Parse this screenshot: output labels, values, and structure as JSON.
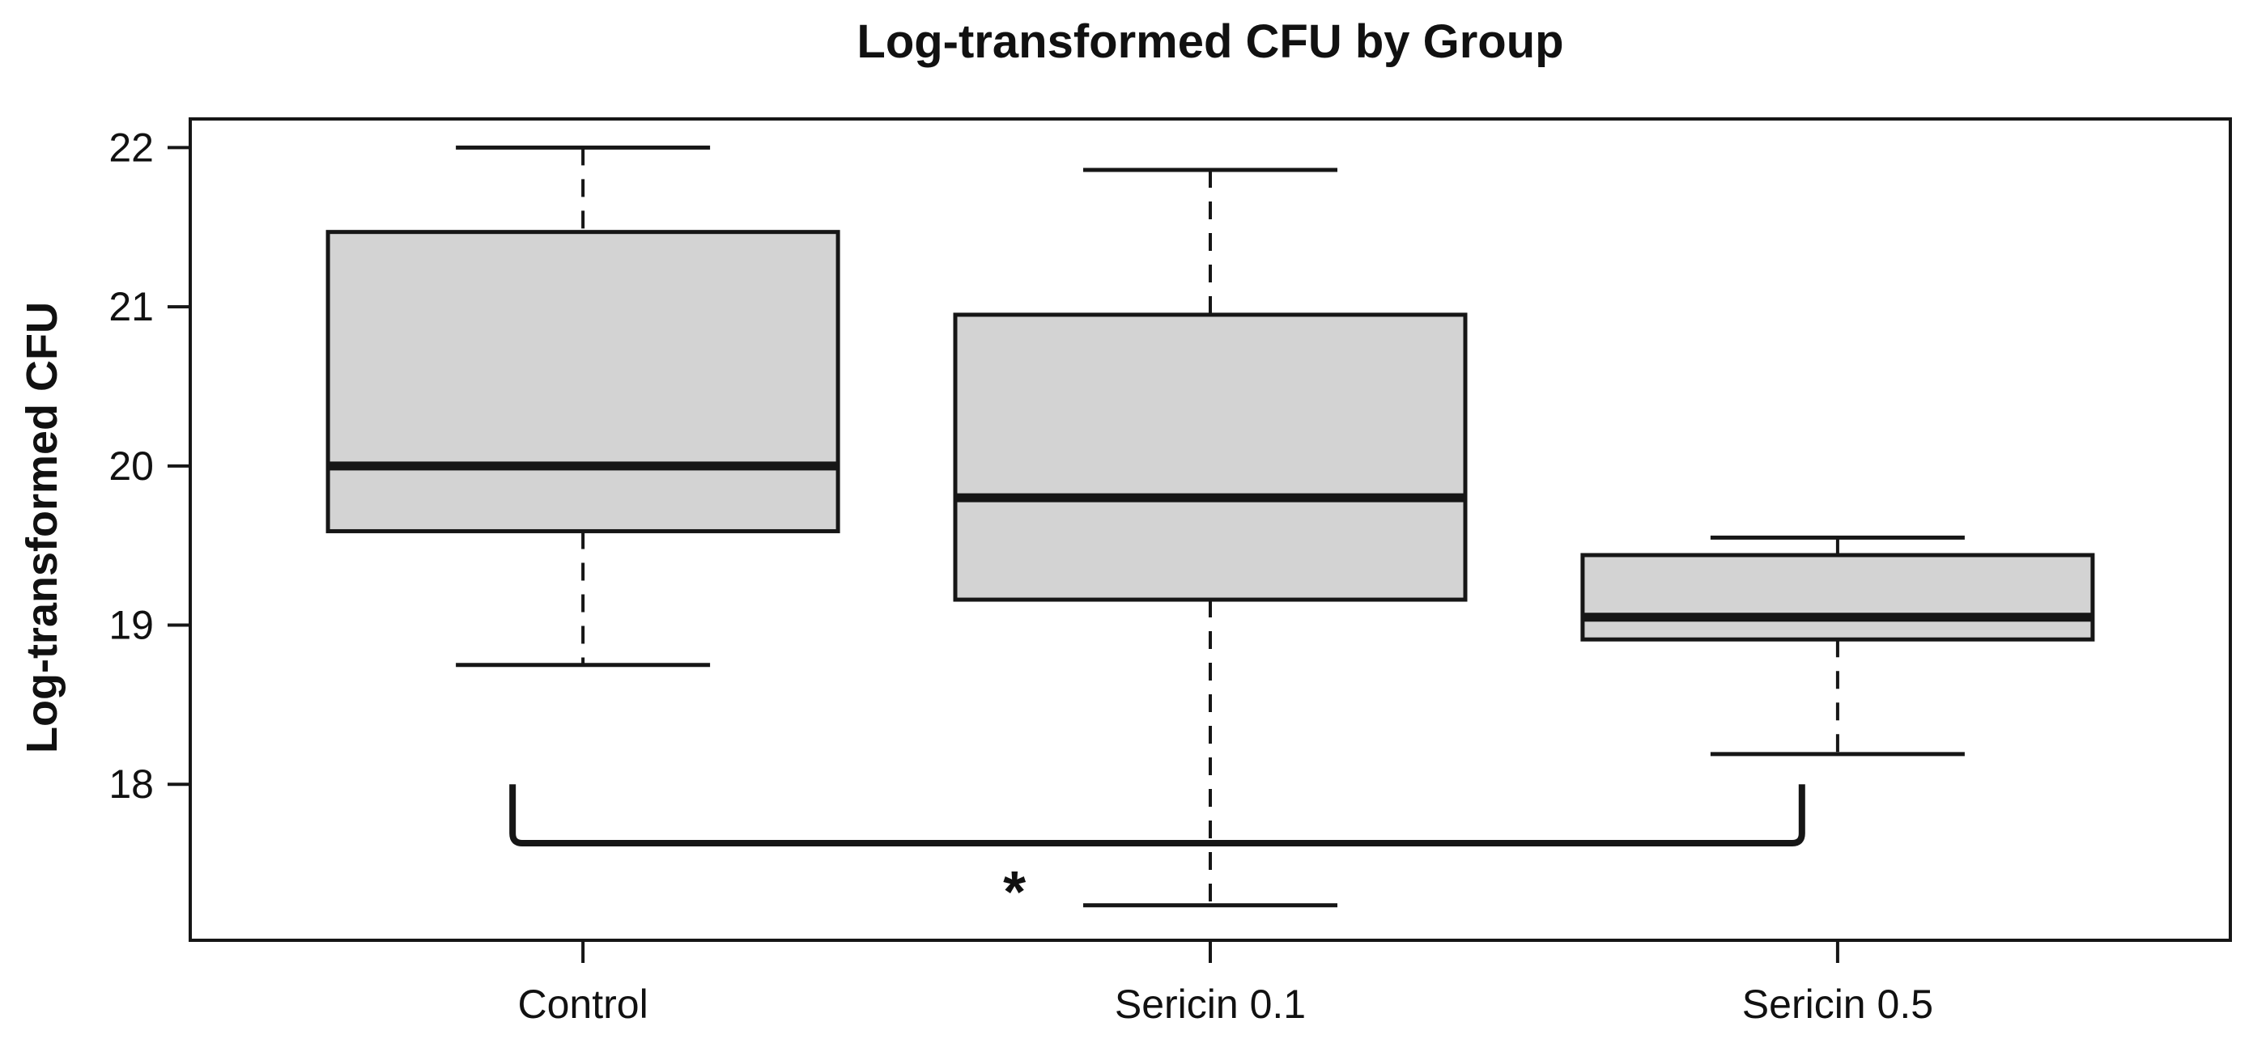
{
  "chart_data": {
    "type": "boxplot",
    "title": "Log-transformed CFU by Group",
    "ylabel": "Log-transformed CFU",
    "xlabel": "",
    "categories": [
      "Control",
      "Sericin 0.1",
      "Sericin 0.5"
    ],
    "yticks": [
      "18",
      "19",
      "20",
      "21",
      "22"
    ],
    "ylim": [
      17.02,
      22.18
    ],
    "grid": false,
    "legend": "none",
    "box_fill": "#d3d3d3",
    "line_color": "#161616",
    "series": [
      {
        "name": "Control",
        "whisker_low": 18.75,
        "q1": 19.59,
        "median": 20.0,
        "q3": 21.47,
        "whisker_high": 22.0
      },
      {
        "name": "Sericin 0.1",
        "whisker_low": 17.24,
        "q1": 19.16,
        "median": 19.8,
        "q3": 20.95,
        "whisker_high": 21.86
      },
      {
        "name": "Sericin 0.5",
        "whisker_low": 18.19,
        "q1": 18.91,
        "median": 19.05,
        "q3": 19.44,
        "whisker_high": 19.55
      }
    ],
    "significance": {
      "label": "*",
      "compares": [
        "Control",
        "Sericin 0.5"
      ],
      "bar_y": 17.63,
      "tip_y": 18.0,
      "x1_frac": 0.158,
      "x2_frac": 0.79,
      "label_x_frac": 0.404,
      "label_y": 17.37
    }
  }
}
